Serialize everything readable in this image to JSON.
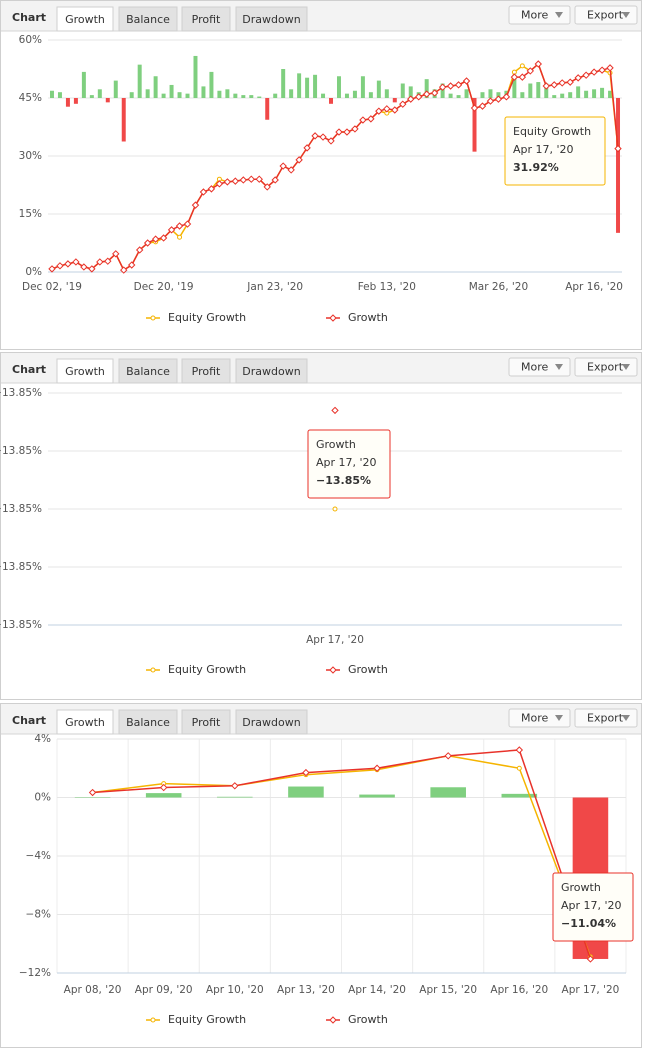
{
  "panels": [
    {
      "label": "Chart",
      "tabs": [
        "Growth",
        "Balance",
        "Profit",
        "Drawdown"
      ],
      "buttons": [
        "More",
        "Export"
      ]
    },
    {
      "label": "Chart",
      "tabs": [
        "Growth",
        "Balance",
        "Profit",
        "Drawdown"
      ],
      "buttons": [
        "More",
        "Export"
      ]
    },
    {
      "label": "Chart",
      "tabs": [
        "Growth",
        "Balance",
        "Profit",
        "Drawdown"
      ],
      "buttons": [
        "More",
        "Export"
      ]
    }
  ],
  "chart_data": [
    {
      "type": "combo",
      "grid": "y",
      "categories": [
        "Dec 02, '19",
        null,
        null,
        null,
        null,
        null,
        null,
        null,
        null,
        null,
        null,
        null,
        null,
        null,
        "Dec 20, '19",
        null,
        null,
        null,
        null,
        null,
        null,
        null,
        null,
        null,
        null,
        null,
        null,
        null,
        "Jan 23, '20",
        null,
        null,
        null,
        null,
        null,
        null,
        null,
        null,
        null,
        null,
        null,
        null,
        null,
        "Feb 13, '20",
        null,
        null,
        null,
        null,
        null,
        null,
        null,
        null,
        null,
        null,
        null,
        null,
        null,
        "Mar 26, '20",
        null,
        null,
        null,
        null,
        null,
        null,
        null,
        null,
        null,
        null,
        null,
        "Apr 16, '20",
        null,
        null,
        null
      ],
      "ylim": [
        0,
        60
      ],
      "yticks": [
        {
          "value": 0,
          "label": "0%"
        },
        {
          "value": 15,
          "label": "15%"
        },
        {
          "value": 30,
          "label": "30%"
        },
        {
          "value": 45,
          "label": "45%"
        },
        {
          "value": 60,
          "label": "60%"
        }
      ],
      "y2lim": [
        -12,
        4
      ],
      "series": [
        {
          "type": "bar",
          "axis": "y2",
          "colors": {
            "positive": "#7fcf7f",
            "negative": "#f04848"
          },
          "values": [
            0.5,
            0.4,
            -0.6,
            -0.4,
            1.8,
            0.2,
            0.6,
            -0.3,
            1.2,
            -3.0,
            0.4,
            2.3,
            0.6,
            1.5,
            0.3,
            0.9,
            0.4,
            0.3,
            2.9,
            0.8,
            1.8,
            0.5,
            0.6,
            0.3,
            0.2,
            0.2,
            0.1,
            -1.5,
            0.3,
            2.0,
            0.6,
            1.7,
            1.4,
            1.6,
            0.3,
            -0.4,
            1.5,
            0.3,
            0.5,
            1.5,
            0.4,
            1.2,
            0.6,
            -0.3,
            1.0,
            0.8,
            0.4,
            1.3,
            0.6,
            1.0,
            0.3,
            0.2,
            0.6,
            -3.7,
            0.4,
            0.6,
            0.4,
            0.5,
            1.6,
            0.4,
            1.0,
            1.1,
            1.0,
            0.2,
            0.3,
            0.4,
            0.8,
            0.5,
            0.6,
            0.7,
            0.5,
            -9.3
          ]
        },
        {
          "type": "line",
          "name": "Equity Growth",
          "color": "#f5b400",
          "marker": "circle",
          "values": [
            0.8,
            1.6,
            2.1,
            2.6,
            1.3,
            0.8,
            2.6,
            2.8,
            4.7,
            0.5,
            1.8,
            5.7,
            7.5,
            7.8,
            8.8,
            10.9,
            9.0,
            12.4,
            17.3,
            20.7,
            21.5,
            24.0,
            23.3,
            23.5,
            23.8,
            24.0,
            24.0,
            22.0,
            23.8,
            27.4,
            26.4,
            29.0,
            32.1,
            35.2,
            34.9,
            33.9,
            36.2,
            36.2,
            37.0,
            39.3,
            39.6,
            41.6,
            41.1,
            41.9,
            43.4,
            44.7,
            45.3,
            46.0,
            46.3,
            47.8,
            48.1,
            48.4,
            49.4,
            42.4,
            42.9,
            44.2,
            44.7,
            45.3,
            51.7,
            53.3,
            52.0,
            53.8,
            48.1,
            48.4,
            48.9,
            49.1,
            50.2,
            50.9,
            51.7,
            52.2,
            51.5,
            31.92
          ]
        },
        {
          "type": "line",
          "name": "Growth",
          "color": "#e8322a",
          "marker": "diamond",
          "values": [
            0.8,
            1.6,
            2.1,
            2.6,
            1.3,
            0.8,
            2.6,
            2.8,
            4.7,
            0.5,
            1.8,
            5.7,
            7.5,
            8.5,
            8.8,
            10.9,
            11.9,
            12.4,
            17.3,
            20.7,
            21.5,
            22.8,
            23.3,
            23.5,
            23.8,
            24.0,
            24.0,
            22.0,
            23.8,
            27.4,
            26.4,
            29.0,
            32.1,
            35.2,
            34.9,
            33.9,
            36.2,
            36.2,
            37.0,
            39.3,
            39.6,
            41.6,
            42.2,
            41.9,
            43.4,
            44.7,
            45.3,
            46.0,
            46.3,
            47.8,
            48.1,
            48.4,
            49.4,
            42.4,
            42.9,
            44.2,
            44.7,
            45.3,
            50.4,
            50.4,
            52.0,
            53.8,
            48.1,
            48.4,
            48.9,
            49.1,
            50.2,
            50.9,
            51.7,
            52.2,
            52.8,
            31.9
          ]
        }
      ],
      "tooltip": [
        "Equity Growth",
        "Apr 17, '20",
        "31.92%"
      ]
    },
    {
      "type": "combo",
      "grid": "y",
      "categories": [
        "Apr 17, '20"
      ],
      "ylim": [
        -13.852,
        -13.848
      ],
      "yticks": [
        {
          "value": -13.852,
          "label": "−13.85%"
        },
        {
          "value": -13.851,
          "label": "−13.85%"
        },
        {
          "value": -13.85,
          "label": "−13.85%"
        },
        {
          "value": -13.849,
          "label": "−13.85%"
        },
        {
          "value": -13.848,
          "label": "−13.85%"
        }
      ],
      "series": [
        {
          "type": "line",
          "name": "Equity Growth",
          "color": "#f5b400",
          "marker": "circle",
          "values": [
            -13.85
          ]
        },
        {
          "type": "line",
          "name": "Growth",
          "color": "#e8322a",
          "marker": "diamond",
          "values": [
            -13.8483
          ]
        }
      ],
      "tooltip": [
        "Growth",
        "Apr 17, '20",
        "−13.85%"
      ]
    },
    {
      "type": "combo",
      "grid": "both",
      "categories": [
        "Apr 08, '20",
        "Apr 09, '20",
        "Apr 10, '20",
        "Apr 13, '20",
        "Apr 14, '20",
        "Apr 15, '20",
        "Apr 16, '20",
        "Apr 17, '20"
      ],
      "ylim": [
        -12,
        4
      ],
      "yticks": [
        {
          "value": -12,
          "label": "−12%"
        },
        {
          "value": -8,
          "label": "−8%"
        },
        {
          "value": -4,
          "label": "−4%"
        },
        {
          "value": 0,
          "label": "0%"
        },
        {
          "value": 4,
          "label": "4%"
        }
      ],
      "series": [
        {
          "type": "bar",
          "colors": {
            "positive": "#7fcf7f",
            "negative": "#f04848"
          },
          "values": [
            0,
            0.3,
            0.05,
            0.75,
            0.2,
            0.7,
            0.25,
            -11.04
          ]
        },
        {
          "type": "line",
          "name": "Equity Growth",
          "color": "#f5b400",
          "marker": "circle",
          "values": [
            0.34,
            0.95,
            0.8,
            1.56,
            1.9,
            2.85,
            2.0,
            -10.9
          ]
        },
        {
          "type": "line",
          "name": "Growth",
          "color": "#e8322a",
          "marker": "diamond",
          "values": [
            0.34,
            0.68,
            0.8,
            1.7,
            2.0,
            2.85,
            3.25,
            -11.04
          ]
        }
      ],
      "tooltip": [
        "Growth",
        "Apr 17, '20",
        "−11.04%"
      ]
    }
  ]
}
